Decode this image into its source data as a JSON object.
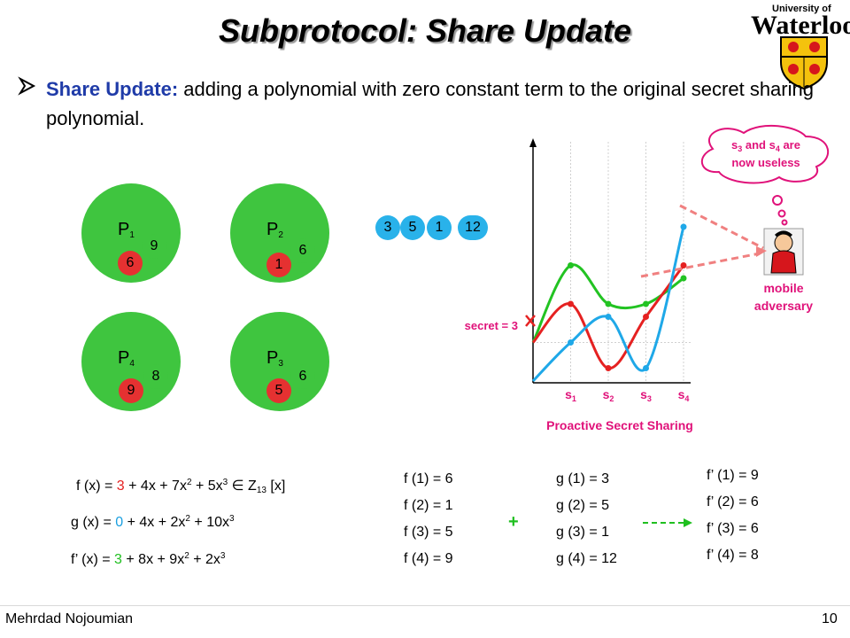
{
  "title": "Subprotocol: Share Update",
  "logo": {
    "university_of": "University of",
    "name": "Waterloo"
  },
  "bullet": {
    "heading": "Share Update:",
    "text": " adding a polynomial with zero constant term to the original secret sharing polynomial."
  },
  "parties": [
    {
      "label": "P",
      "sub": "1",
      "green": "9",
      "red": "6"
    },
    {
      "label": "P",
      "sub": "2",
      "green": "6",
      "red": "1"
    },
    {
      "label": "P",
      "sub": "4",
      "green": "8",
      "red": "9"
    },
    {
      "label": "P",
      "sub": "3",
      "green": "6",
      "red": "5"
    }
  ],
  "g_shares": [
    "3",
    "5",
    "1",
    "12"
  ],
  "chart_data": {
    "type": "line",
    "title": "Proactive Secret Sharing",
    "x_labels": [
      "s1",
      "s2",
      "s3",
      "s4"
    ],
    "secret_label": "secret = 3",
    "thought": "s3 and s4 are now useless",
    "adversary": "mobile adversary",
    "series": [
      {
        "name": "",
        "color": "#22c322",
        "points": [
          [
            0,
            3
          ],
          [
            1,
            9
          ],
          [
            2,
            6
          ],
          [
            3,
            6
          ],
          [
            4,
            8
          ]
        ]
      },
      {
        "name": "",
        "color": "#e52121",
        "points": [
          [
            0,
            3
          ],
          [
            1,
            6
          ],
          [
            2,
            1
          ],
          [
            3,
            5
          ],
          [
            4,
            9
          ]
        ]
      },
      {
        "name": "",
        "color": "#1fa8e8",
        "points": [
          [
            0,
            0
          ],
          [
            1,
            3
          ],
          [
            2,
            5
          ],
          [
            3,
            1
          ],
          [
            4,
            12
          ]
        ]
      }
    ]
  },
  "formulas": {
    "f": {
      "pre": "f (x) = ",
      "c": "3",
      "rest": " + 4x + 7x",
      "e2": "2",
      "mid": " + 5x",
      "e3": "3",
      "post": " ∈ Z",
      "mod": "13",
      "tail": " [x]"
    },
    "g": {
      "pre": "g (x) = ",
      "c": "0",
      "rest": " + 4x + 2x",
      "e2": "2",
      "mid": " + 10x",
      "e3": "3"
    },
    "fp": {
      "pre": "f’ (x) = ",
      "c": "3",
      "rest": " + 8x + 9x",
      "e2": "2",
      "mid": " + 2x",
      "e3": "3"
    }
  },
  "f_values": [
    "f (1) = 6",
    "f (2) = 1",
    "f (3) = 5",
    "f (4) = 9"
  ],
  "g_values": [
    "g (1) = 3",
    "g (2) = 5",
    "g (3) = 1",
    "g (4) = 12"
  ],
  "fp_values": [
    "f’ (1) = 9",
    "f’ (2) = 6",
    "f’ (3) = 6",
    "f’ (4) = 8"
  ],
  "plus": "+",
  "footer": {
    "author": "Mehrdad Nojoumian",
    "page": "10"
  }
}
